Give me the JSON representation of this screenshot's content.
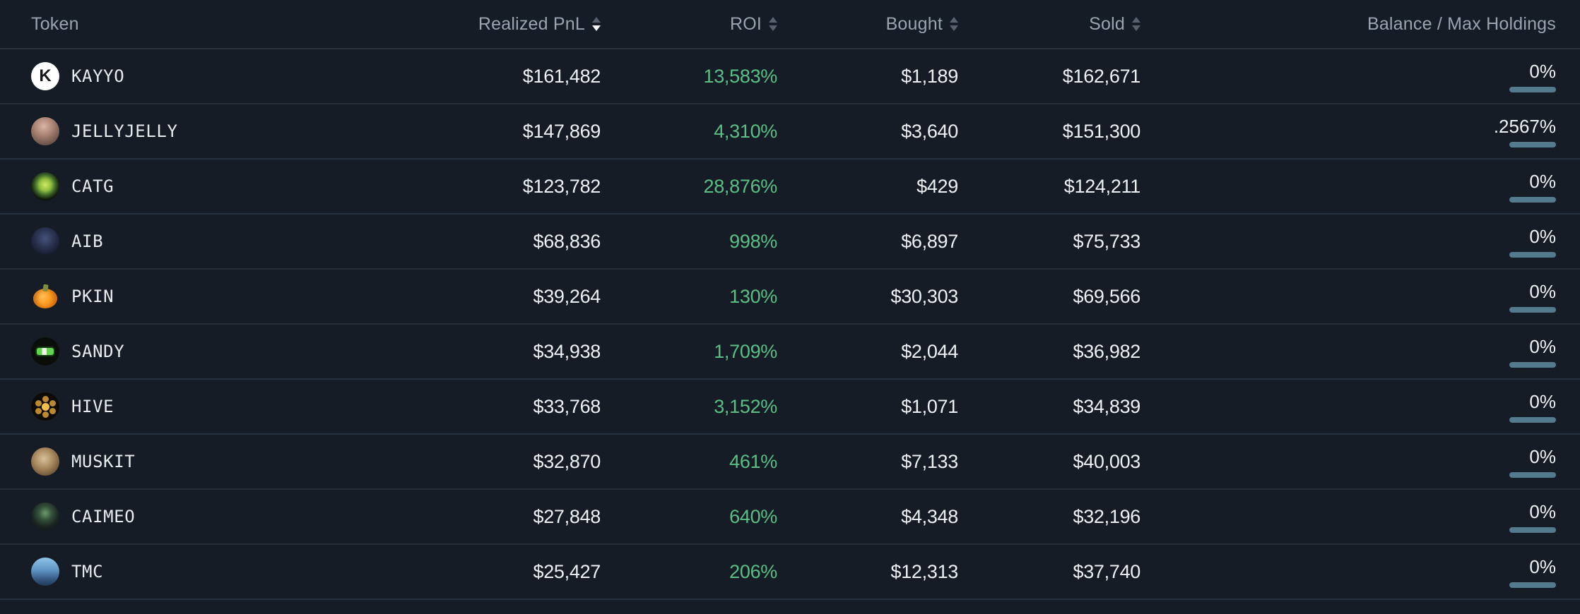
{
  "colors": {
    "background": "#161c25",
    "separator": "#28313e",
    "header_text": "#9aa4b1",
    "value_text": "#eef1f4",
    "roi_positive": "#5abf85",
    "balance_bar": "#537a8d",
    "sort_active": "#f4f6f8",
    "sort_inactive": "#58616d"
  },
  "table": {
    "columns": [
      {
        "id": "token",
        "label": "Token",
        "sortable": false,
        "sort": null
      },
      {
        "id": "realized_pnl",
        "label": "Realized PnL",
        "sortable": true,
        "sort": "desc"
      },
      {
        "id": "roi",
        "label": "ROI",
        "sortable": true,
        "sort": null
      },
      {
        "id": "bought",
        "label": "Bought",
        "sortable": true,
        "sort": null
      },
      {
        "id": "sold",
        "label": "Sold",
        "sortable": true,
        "sort": null
      },
      {
        "id": "balance",
        "label": "Balance / Max Holdings",
        "sortable": false,
        "sort": null
      }
    ],
    "rows": [
      {
        "token": "KAYYO",
        "realized_pnl": "$161,482",
        "roi": "13,583%",
        "bought": "$1,189",
        "sold": "$162,671",
        "balance": "0%",
        "icon": {
          "name": "kayyo-token-icon",
          "kind": "letter",
          "bg": "#ffffff",
          "fg": "#15171b",
          "glyph": "K"
        }
      },
      {
        "token": "JELLYJELLY",
        "realized_pnl": "$147,869",
        "roi": "4,310%",
        "bought": "$3,640",
        "sold": "$151,300",
        "balance": ".2567%",
        "icon": {
          "name": "jellyjelly-token-icon",
          "kind": "gradient",
          "bg": "radial-gradient(circle at 45% 32%, #d8b4a6 0%, #aa8373 38%, #6f574f 72%, #4a3a36 100%)"
        }
      },
      {
        "token": "CATG",
        "realized_pnl": "$123,782",
        "roi": "28,876%",
        "bought": "$429",
        "sold": "$124,211",
        "balance": "0%",
        "icon": {
          "name": "catg-token-icon",
          "kind": "gradient",
          "bg": "radial-gradient(circle at 50% 45%, #cdeb66 0%, #90bf3f 28%, #406a2a 48%, #0b0f08 72%)"
        }
      },
      {
        "token": "AIB",
        "realized_pnl": "$68,836",
        "roi": "998%",
        "bought": "$6,897",
        "sold": "$75,733",
        "balance": "0%",
        "icon": {
          "name": "aib-token-icon",
          "kind": "gradient",
          "bg": "radial-gradient(circle at 50% 40%, #46527a 0%, #28304c 45%, #141a2b 78%)"
        }
      },
      {
        "token": "PKIN",
        "realized_pnl": "$39,264",
        "roi": "130%",
        "bought": "$30,303",
        "sold": "$69,566",
        "balance": "0%",
        "icon": {
          "name": "pkin-token-icon",
          "kind": "pumpkin",
          "bg": "transparent"
        }
      },
      {
        "token": "SANDY",
        "realized_pnl": "$34,938",
        "roi": "1,709%",
        "bought": "$2,044",
        "sold": "$36,982",
        "balance": "0%",
        "icon": {
          "name": "sandy-token-icon",
          "kind": "sandy",
          "bg": "#0a0d0a"
        }
      },
      {
        "token": "HIVE",
        "realized_pnl": "$33,768",
        "roi": "3,152%",
        "bought": "$1,071",
        "sold": "$34,839",
        "balance": "0%",
        "icon": {
          "name": "hive-token-icon",
          "kind": "hive",
          "bg": "#0d0b08"
        }
      },
      {
        "token": "MUSKIT",
        "realized_pnl": "$32,870",
        "roi": "461%",
        "bought": "$7,133",
        "sold": "$40,003",
        "balance": "0%",
        "icon": {
          "name": "muskit-token-icon",
          "kind": "gradient",
          "bg": "radial-gradient(circle at 45% 40%, #d9c19b 0%, #aa8b60 40%, #705739 75%, #463520 100%)"
        }
      },
      {
        "token": "CAIMEO",
        "realized_pnl": "$27,848",
        "roi": "640%",
        "bought": "$4,348",
        "sold": "$32,196",
        "balance": "0%",
        "icon": {
          "name": "caimeo-token-icon",
          "kind": "gradient",
          "bg": "radial-gradient(circle at 50% 38%, #709b6b 0%, #34513b 30%, #19241f 60%, #0c1014 100%)"
        }
      },
      {
        "token": "TMC",
        "realized_pnl": "$25,427",
        "roi": "206%",
        "bought": "$12,313",
        "sold": "$37,740",
        "balance": "0%",
        "icon": {
          "name": "tmc-token-icon",
          "kind": "gradient",
          "bg": "linear-gradient(180deg, #90c4e9 0%, #5f94c3 45%, #32527b 80%, #233a57 100%)"
        }
      }
    ]
  }
}
